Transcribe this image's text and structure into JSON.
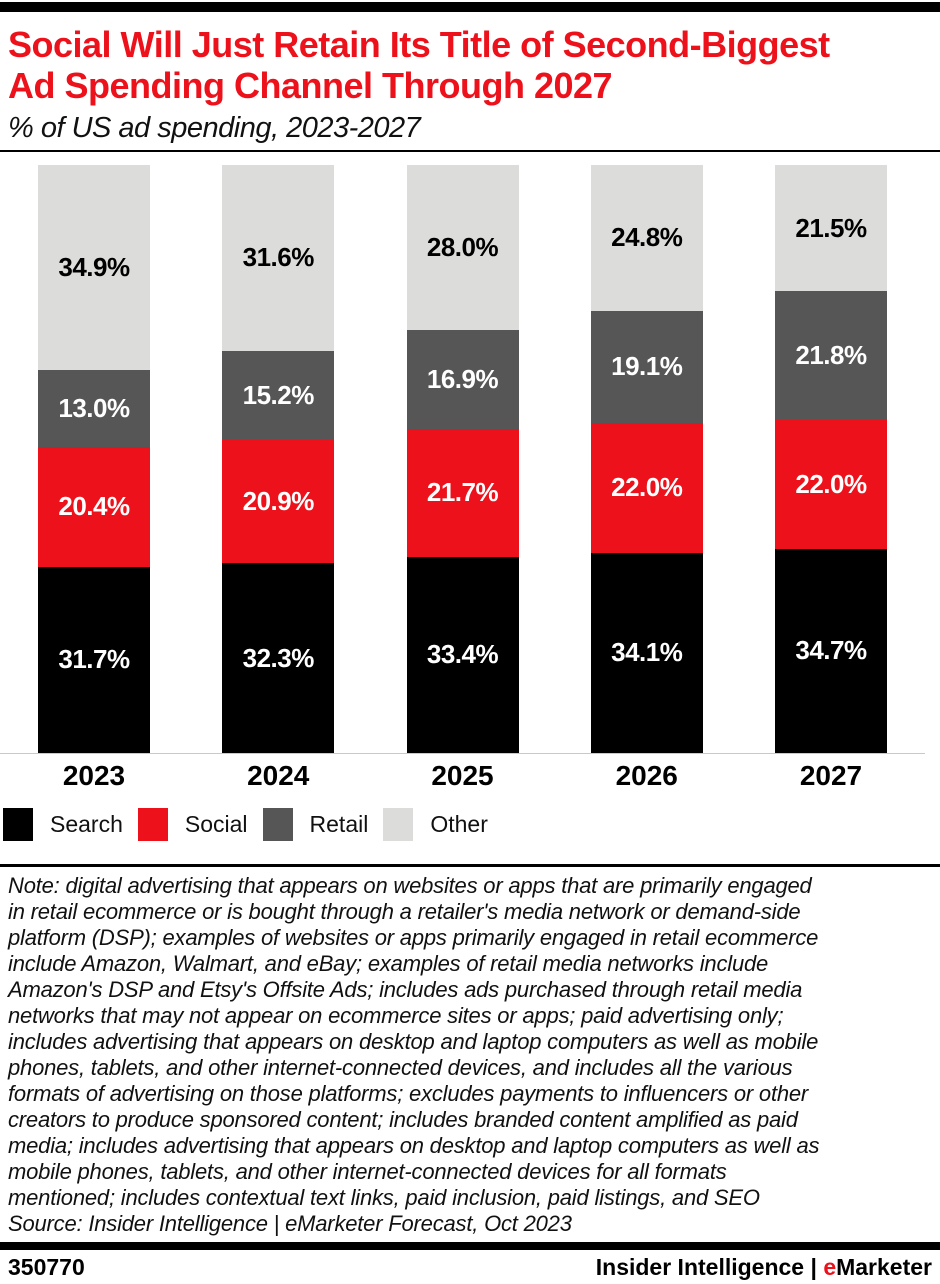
{
  "header": {
    "title": "Social Will Just Retain Its Title of Second-Biggest\nAd Spending Channel Through 2027",
    "subtitle": "% of US ad spending, 2023-2027"
  },
  "chart_data": {
    "type": "bar",
    "stacked": true,
    "percent_stacked": true,
    "title": "Social Will Just Retain Its Title of Second-Biggest Ad Spending Channel Through 2027",
    "subtitle": "% of US ad spending, 2023-2027",
    "categories": [
      "2023",
      "2024",
      "2025",
      "2026",
      "2027"
    ],
    "series": [
      {
        "name": "Search",
        "color": "#000000",
        "label_color": "#ffffff",
        "values": [
          31.7,
          32.3,
          33.4,
          34.1,
          34.7
        ]
      },
      {
        "name": "Social",
        "color": "#ec111a",
        "label_color": "#ffffff",
        "values": [
          20.4,
          20.9,
          21.7,
          22.0,
          22.0
        ]
      },
      {
        "name": "Retail",
        "color": "#565656",
        "label_color": "#ffffff",
        "values": [
          13.0,
          15.2,
          16.9,
          19.1,
          21.8
        ]
      },
      {
        "name": "Other",
        "color": "#dcdcda",
        "label_color": "#000000",
        "values": [
          34.9,
          31.6,
          28.0,
          24.8,
          21.5
        ]
      }
    ],
    "value_suffix": "%",
    "ylim": [
      0,
      100
    ],
    "grid": false,
    "legend_position": "bottom",
    "xlabel": "",
    "ylabel": ""
  },
  "note": {
    "text": "Note: digital advertising that appears on websites or apps that are primarily engaged\nin retail ecommerce or is bought through a retailer's media network or demand-side\nplatform (DSP); examples of websites or apps primarily engaged in retail ecommerce\ninclude Amazon, Walmart, and eBay; examples of retail media networks include\nAmazon's DSP and Etsy's Offsite Ads; includes ads purchased through retail media\nnetworks that may not appear on ecommerce sites or apps; paid advertising only;\nincludes advertising that appears on desktop and laptop computers as well as mobile\nphones, tablets, and other internet-connected devices, and includes all the various\nformats of advertising on those platforms; excludes payments to influencers or other\ncreators to produce sponsored content; includes branded content amplified as paid\nmedia; includes advertising that appears on desktop and laptop computers as well as\nmobile phones, tablets, and other internet-connected devices for all formats\nmentioned; includes contextual text links, paid inclusion, paid listings, and SEO",
    "source": "Source: Insider Intelligence | eMarketer Forecast, Oct 2023"
  },
  "footer": {
    "chart_id": "350770",
    "brand": {
      "name": "Insider Intelligence",
      "separator": " | ",
      "emarketer_e": "e",
      "emarketer_rest": "Marketer"
    }
  },
  "colors": {
    "accent_red": "#ec111a",
    "search_black": "#000000",
    "retail_gray": "#565656",
    "other_gray": "#dcdcda",
    "baseline_gray": "#c9c9c9"
  }
}
